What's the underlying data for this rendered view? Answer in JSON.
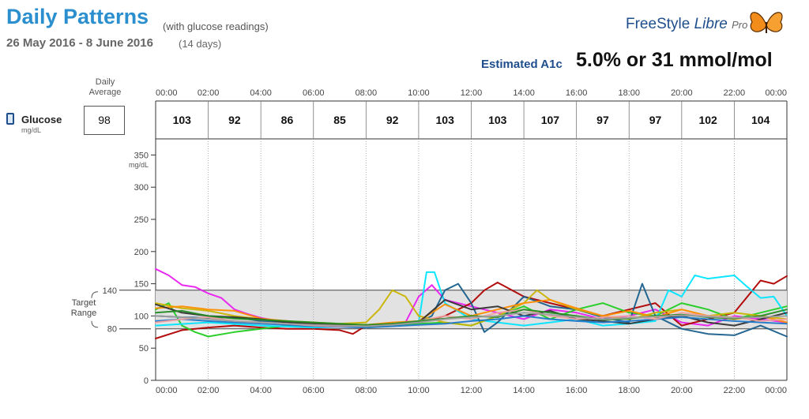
{
  "header": {
    "title": "Daily Patterns",
    "title_sub": "(with glucose readings)",
    "date_range": "26 May 2016 - 8 June 2016",
    "days": "(14 days)",
    "brand_freestyle": "FreeStyle",
    "brand_libre": "Libre",
    "brand_pro": "Pro",
    "a1c_label": "Estimated A1c",
    "a1c_value": "5.0% or 31 mmol/mol"
  },
  "averages": {
    "daily_average_label": "Daily Average",
    "glucose_label": "Glucose",
    "glucose_unit": "mg/dL",
    "daily_average_value": "98",
    "time_labels": [
      "00:00",
      "02:00",
      "04:00",
      "06:00",
      "08:00",
      "10:00",
      "12:00",
      "14:00",
      "16:00",
      "18:00",
      "20:00",
      "22:00",
      "00:00"
    ],
    "period_values": [
      "103",
      "92",
      "86",
      "85",
      "92",
      "103",
      "103",
      "107",
      "97",
      "97",
      "102",
      "104"
    ]
  },
  "target_range": {
    "label": "Target Range",
    "low": 80,
    "high": 140,
    "low_label": "80",
    "high_label": "140"
  },
  "chart_data": {
    "type": "line",
    "x_unit": "hours",
    "xlim": [
      0,
      24
    ],
    "ylim": [
      0,
      375
    ],
    "ylabel": "mg/dL",
    "y_ticks": [
      0,
      50,
      100,
      150,
      200,
      250,
      300,
      350
    ],
    "x_tick_labels": [
      "00:00",
      "02:00",
      "04:00",
      "06:00",
      "08:00",
      "10:00",
      "12:00",
      "14:00",
      "16:00",
      "18:00",
      "20:00",
      "22:00",
      "00:00"
    ],
    "grid": "vertical dashed lines every 2 hours",
    "target_band": [
      80,
      140
    ],
    "series": [
      {
        "color": "#e91ef0",
        "x": [
          0,
          0.5,
          1,
          1.5,
          2,
          2.5,
          3,
          3.5,
          4,
          5,
          6,
          7,
          8,
          9,
          9.5,
          10,
          10.5,
          11,
          12,
          13,
          14,
          15,
          16,
          17,
          18,
          19,
          20,
          21,
          22,
          23,
          24
        ],
        "y": [
          173,
          163,
          148,
          145,
          135,
          128,
          110,
          103,
          97,
          90,
          88,
          86,
          85,
          87,
          90,
          130,
          148,
          125,
          115,
          105,
          95,
          110,
          105,
          95,
          100,
          110,
          90,
          85,
          100,
          95,
          90
        ]
      },
      {
        "color": "#b00000",
        "x": [
          0,
          1,
          2,
          3,
          4,
          5,
          6,
          7,
          7.5,
          8,
          9,
          10,
          11,
          12,
          12.5,
          13,
          14,
          15,
          16,
          17,
          18,
          19,
          20,
          21,
          22,
          23,
          23.5,
          24
        ],
        "y": [
          65,
          78,
          82,
          85,
          82,
          80,
          80,
          78,
          72,
          85,
          88,
          90,
          100,
          120,
          140,
          152,
          130,
          120,
          110,
          100,
          110,
          120,
          85,
          95,
          105,
          155,
          150,
          162
        ]
      },
      {
        "color": "#22cc22",
        "x": [
          0,
          0.5,
          1,
          1.5,
          2,
          3,
          4,
          5,
          6,
          7,
          8,
          9,
          10,
          11,
          12,
          13,
          14,
          15,
          16,
          17,
          18,
          19,
          20,
          21,
          22,
          23,
          24
        ],
        "y": [
          110,
          120,
          85,
          75,
          68,
          75,
          80,
          85,
          82,
          85,
          82,
          85,
          88,
          90,
          85,
          100,
          115,
          95,
          110,
          120,
          105,
          100,
          120,
          110,
          95,
          105,
          115
        ]
      },
      {
        "color": "#00e5ff",
        "x": [
          0,
          2,
          4,
          6,
          8,
          9,
          10,
          10.3,
          10.6,
          11,
          12,
          13,
          14,
          15,
          16,
          17,
          18,
          19,
          19.5,
          20,
          20.5,
          21,
          22,
          22.5,
          23,
          23.5,
          24
        ],
        "y": [
          85,
          90,
          85,
          82,
          85,
          88,
          90,
          168,
          168,
          120,
          95,
          90,
          85,
          90,
          95,
          85,
          88,
          92,
          140,
          130,
          163,
          158,
          163,
          145,
          128,
          130,
          100
        ]
      },
      {
        "color": "#1a5f8c",
        "x": [
          0,
          1,
          2,
          3,
          4,
          5,
          6,
          7,
          8,
          9,
          10,
          10.5,
          11,
          11.5,
          12,
          12.5,
          13,
          14,
          15,
          16,
          17,
          18,
          18.5,
          19,
          20,
          21,
          22,
          23,
          24
        ],
        "y": [
          100,
          98,
          97,
          98,
          92,
          90,
          88,
          86,
          84,
          86,
          90,
          100,
          140,
          150,
          120,
          75,
          90,
          130,
          115,
          110,
          98,
          90,
          150,
          100,
          80,
          72,
          70,
          85,
          68
        ]
      },
      {
        "color": "#c9b400",
        "x": [
          0,
          1,
          2,
          3,
          4,
          5,
          6,
          7,
          8,
          8.5,
          9,
          9.5,
          10,
          11,
          12,
          13,
          14,
          14.5,
          15,
          16,
          17,
          18,
          19,
          20,
          21,
          22,
          23,
          24
        ],
        "y": [
          120,
          112,
          108,
          100,
          95,
          92,
          90,
          88,
          90,
          110,
          140,
          130,
          100,
          90,
          85,
          100,
          120,
          140,
          125,
          110,
          100,
          95,
          105,
          110,
          100,
          105,
          100,
          95
        ]
      },
      {
        "color": "#ff8c00",
        "x": [
          0,
          1,
          2,
          3,
          4,
          5,
          6,
          7,
          8,
          9,
          10,
          11,
          12,
          13,
          14,
          15,
          16,
          17,
          18,
          19,
          20,
          21,
          22,
          23,
          24
        ],
        "y": [
          112,
          115,
          110,
          108,
          96,
          92,
          88,
          86,
          86,
          90,
          92,
          118,
          100,
          110,
          120,
          125,
          112,
          100,
          108,
          98,
          110,
          100,
          95,
          100,
          90
        ]
      },
      {
        "color": "#333333",
        "x": [
          0,
          1,
          2,
          3,
          4,
          5,
          6,
          7,
          8,
          9,
          10,
          11,
          12,
          13,
          14,
          15,
          16,
          17,
          18,
          19,
          20,
          21,
          22,
          23,
          24
        ],
        "y": [
          118,
          105,
          100,
          98,
          95,
          90,
          88,
          86,
          84,
          88,
          90,
          125,
          110,
          115,
          100,
          108,
          95,
          92,
          88,
          95,
          100,
          90,
          85,
          95,
          105
        ]
      },
      {
        "color": "#1f78c8",
        "x": [
          0,
          1,
          2,
          3,
          4,
          5,
          6,
          7,
          8,
          9,
          10,
          11,
          12,
          13,
          14,
          15,
          16,
          17,
          18,
          19,
          20,
          21,
          22,
          23,
          24
        ],
        "y": [
          92,
          95,
          92,
          90,
          88,
          86,
          84,
          83,
          82,
          84,
          86,
          88,
          92,
          95,
          100,
          95,
          92,
          90,
          92,
          95,
          98,
          95,
          92,
          90,
          88
        ]
      },
      {
        "color": "#f0a0a0",
        "x": [
          0,
          1,
          2,
          3,
          4,
          5,
          6,
          7,
          8,
          9,
          10,
          11,
          12,
          13,
          14,
          15,
          16,
          17,
          18,
          19,
          20,
          21,
          22,
          23,
          24
        ],
        "y": [
          90,
          95,
          98,
          92,
          90,
          88,
          85,
          84,
          85,
          88,
          92,
          100,
          95,
          105,
          110,
          100,
          95,
          98,
          100,
          95,
          105,
          100,
          98,
          92,
          95
        ]
      },
      {
        "color": "#228b22",
        "x": [
          0,
          1,
          2,
          3,
          4,
          5,
          6,
          7,
          8,
          9,
          10,
          11,
          12,
          13,
          14,
          15,
          16,
          17,
          18,
          19,
          20,
          21,
          22,
          23,
          24
        ],
        "y": [
          105,
          108,
          100,
          96,
          94,
          92,
          90,
          88,
          86,
          88,
          92,
          96,
          100,
          98,
          110,
          105,
          100,
          94,
          96,
          100,
          102,
          98,
          96,
          100,
          110
        ]
      },
      {
        "color": "#a0a0a0",
        "x": [
          0,
          1,
          2,
          3,
          4,
          5,
          6,
          7,
          8,
          9,
          10,
          11,
          12,
          13,
          14,
          15,
          16,
          17,
          18,
          19,
          20,
          21,
          22,
          23,
          24
        ],
        "y": [
          100,
          98,
          95,
          92,
          90,
          88,
          86,
          85,
          84,
          86,
          90,
          95,
          98,
          100,
          105,
          102,
          98,
          95,
          97,
          99,
          101,
          99,
          97,
          98,
          100
        ]
      }
    ]
  }
}
